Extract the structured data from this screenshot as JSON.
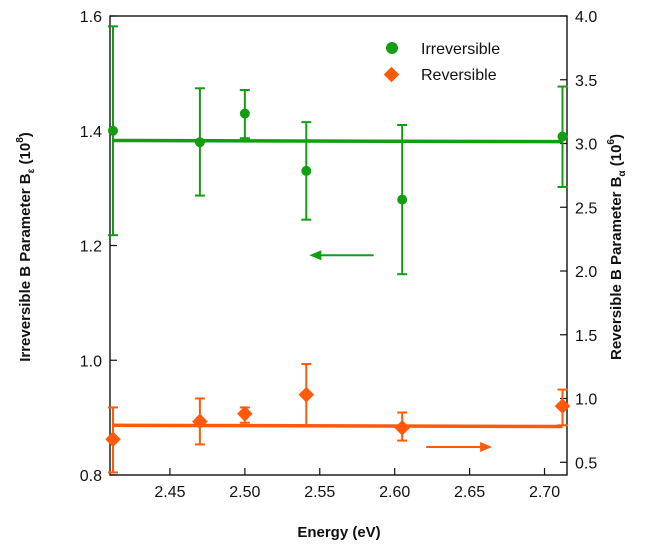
{
  "chart_data": {
    "type": "scatter",
    "xlabel": "Energy (eV)",
    "ylabel_left": {
      "prefix": "Irreversible B Parameter B",
      "subscript": "ε",
      "suffix_open": " (10",
      "superscript": "8",
      "suffix_close": ")"
    },
    "ylabel_right": {
      "prefix": "Reversible B Parameter B",
      "subscript": "α",
      "suffix_open": " (10",
      "superscript": "6",
      "suffix_close": ")"
    },
    "xlim": [
      2.41,
      2.715
    ],
    "ylim_left": [
      0.8,
      1.6
    ],
    "ylim_right": [
      0.4,
      4.0
    ],
    "x_ticks": [
      "2.45",
      "2.50",
      "2.55",
      "2.60",
      "2.65",
      "2.70"
    ],
    "y_left_ticks": [
      "0.8",
      "1.0",
      "1.2",
      "1.4",
      "1.6"
    ],
    "y_right_ticks": [
      "0.5",
      "1.0",
      "1.5",
      "2.0",
      "2.5",
      "3.0",
      "3.5",
      "4.0"
    ],
    "legend_position": "top-right",
    "grid": false,
    "series": [
      {
        "name": "Irreversible",
        "axis": "left",
        "marker": "circle",
        "color": "#139d13",
        "points": [
          {
            "x": 2.412,
            "y": 1.4,
            "err_low": 1.218,
            "err_high": 1.582
          },
          {
            "x": 2.47,
            "y": 1.38,
            "err_low": 1.287,
            "err_high": 1.474
          },
          {
            "x": 2.5,
            "y": 1.43,
            "err_low": 1.387,
            "err_high": 1.471
          },
          {
            "x": 2.541,
            "y": 1.33,
            "err_low": 1.245,
            "err_high": 1.415
          },
          {
            "x": 2.605,
            "y": 1.28,
            "err_low": 1.15,
            "err_high": 1.41
          },
          {
            "x": 2.712,
            "y": 1.39,
            "err_low": 1.302,
            "err_high": 1.477
          }
        ],
        "fit": {
          "x": [
            2.412,
            2.712
          ],
          "y": [
            1.383,
            1.381
          ]
        }
      },
      {
        "name": "Reversible",
        "axis": "right",
        "marker": "diamond",
        "color": "#ff5a0a",
        "points": [
          {
            "x": 2.412,
            "y": 0.68,
            "err_low": 0.42,
            "err_high": 0.93
          },
          {
            "x": 2.47,
            "y": 0.82,
            "err_low": 0.64,
            "err_high": 1.0
          },
          {
            "x": 2.5,
            "y": 0.88,
            "err_low": 0.81,
            "err_high": 0.93
          },
          {
            "x": 2.541,
            "y": 1.03,
            "err_low": 0.79,
            "err_high": 1.27
          },
          {
            "x": 2.605,
            "y": 0.77,
            "err_low": 0.67,
            "err_high": 0.89
          },
          {
            "x": 2.712,
            "y": 0.94,
            "err_low": 0.79,
            "err_high": 1.07
          }
        ],
        "fit": {
          "x": [
            2.412,
            2.712
          ],
          "y": [
            0.79,
            0.78
          ]
        }
      }
    ],
    "annotations": [
      {
        "type": "arrow",
        "direction": "left",
        "axis": "left",
        "x_from": 2.586,
        "x_to": 2.543,
        "y": 1.183,
        "color": "#139d13"
      },
      {
        "type": "arrow",
        "direction": "right",
        "axis": "right",
        "x_from": 2.621,
        "x_to": 2.665,
        "y": 0.62,
        "color": "#ff5a0a"
      }
    ]
  }
}
